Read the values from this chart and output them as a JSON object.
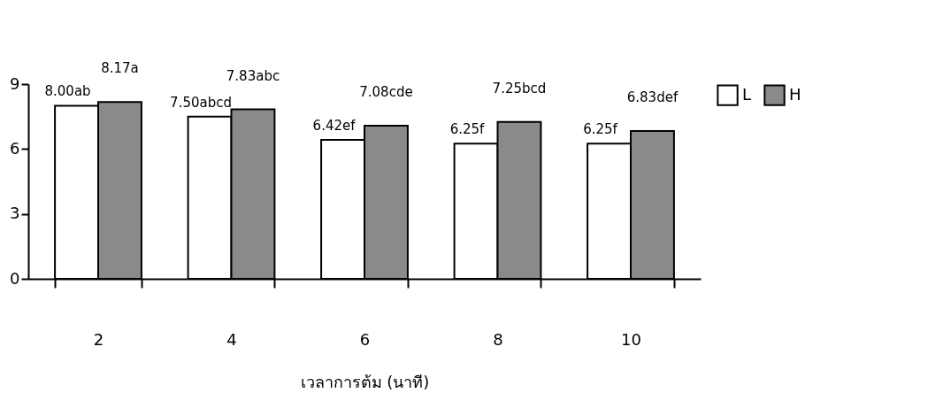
{
  "chart_data": {
    "type": "bar",
    "xlabel": "เวลาการต้ม (นาที)",
    "categories": [
      "2",
      "4",
      "6",
      "8",
      "10"
    ],
    "series": [
      {
        "name": "L",
        "color": "#ffffff",
        "values": [
          8.0,
          7.5,
          6.42,
          6.25,
          6.25
        ],
        "value_labels": [
          "8.00ab",
          "7.50abcd",
          "6.42ef",
          "6.25f",
          "6.25f"
        ]
      },
      {
        "name": "H",
        "color": "#8a8a8a",
        "values": [
          8.17,
          7.83,
          7.08,
          7.25,
          6.83
        ],
        "value_labels": [
          "8.17a",
          "7.83abc",
          "7.08cde",
          "7.25bcd",
          "6.83def"
        ]
      }
    ],
    "ylim": [
      0,
      9
    ],
    "yticks": [
      0,
      3,
      6,
      9
    ],
    "grid": false,
    "legend": "right"
  }
}
